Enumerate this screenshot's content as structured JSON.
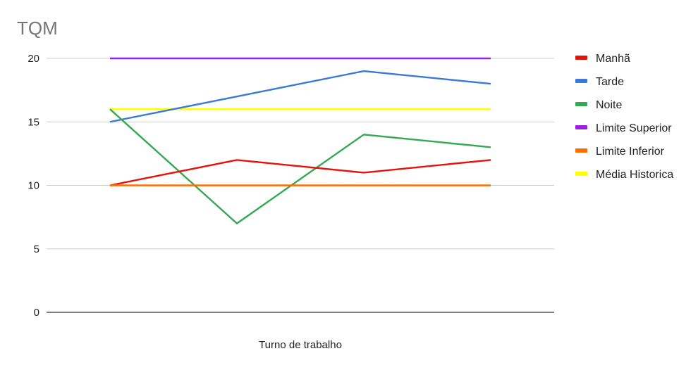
{
  "chart_data": {
    "type": "line",
    "title": "TQM",
    "xlabel": "Turno de trabalho",
    "ylabel": "",
    "ylim": [
      0,
      20
    ],
    "yticks": [
      0,
      5,
      10,
      15,
      20
    ],
    "grid": true,
    "legend_position": "right",
    "x": [
      1,
      2,
      3,
      4
    ],
    "series": [
      {
        "name": "Manhã",
        "color": "#e8120c",
        "values": [
          10,
          12,
          11,
          12
        ]
      },
      {
        "name": "Tarde",
        "color": "#3b78d8",
        "values": [
          15,
          17,
          19,
          18
        ]
      },
      {
        "name": "Noite",
        "color": "#34a853",
        "values": [
          16,
          7,
          14,
          13
        ]
      },
      {
        "name": "Limite Superior",
        "color": "#9b1fe0",
        "values": [
          20,
          20,
          20,
          20
        ]
      },
      {
        "name": "Limite Inferior",
        "color": "#ff6d01",
        "values": [
          10,
          10,
          10,
          10
        ]
      },
      {
        "name": "Média Historica",
        "color": "#ffff00",
        "values": [
          16,
          16,
          16,
          16
        ]
      }
    ]
  }
}
